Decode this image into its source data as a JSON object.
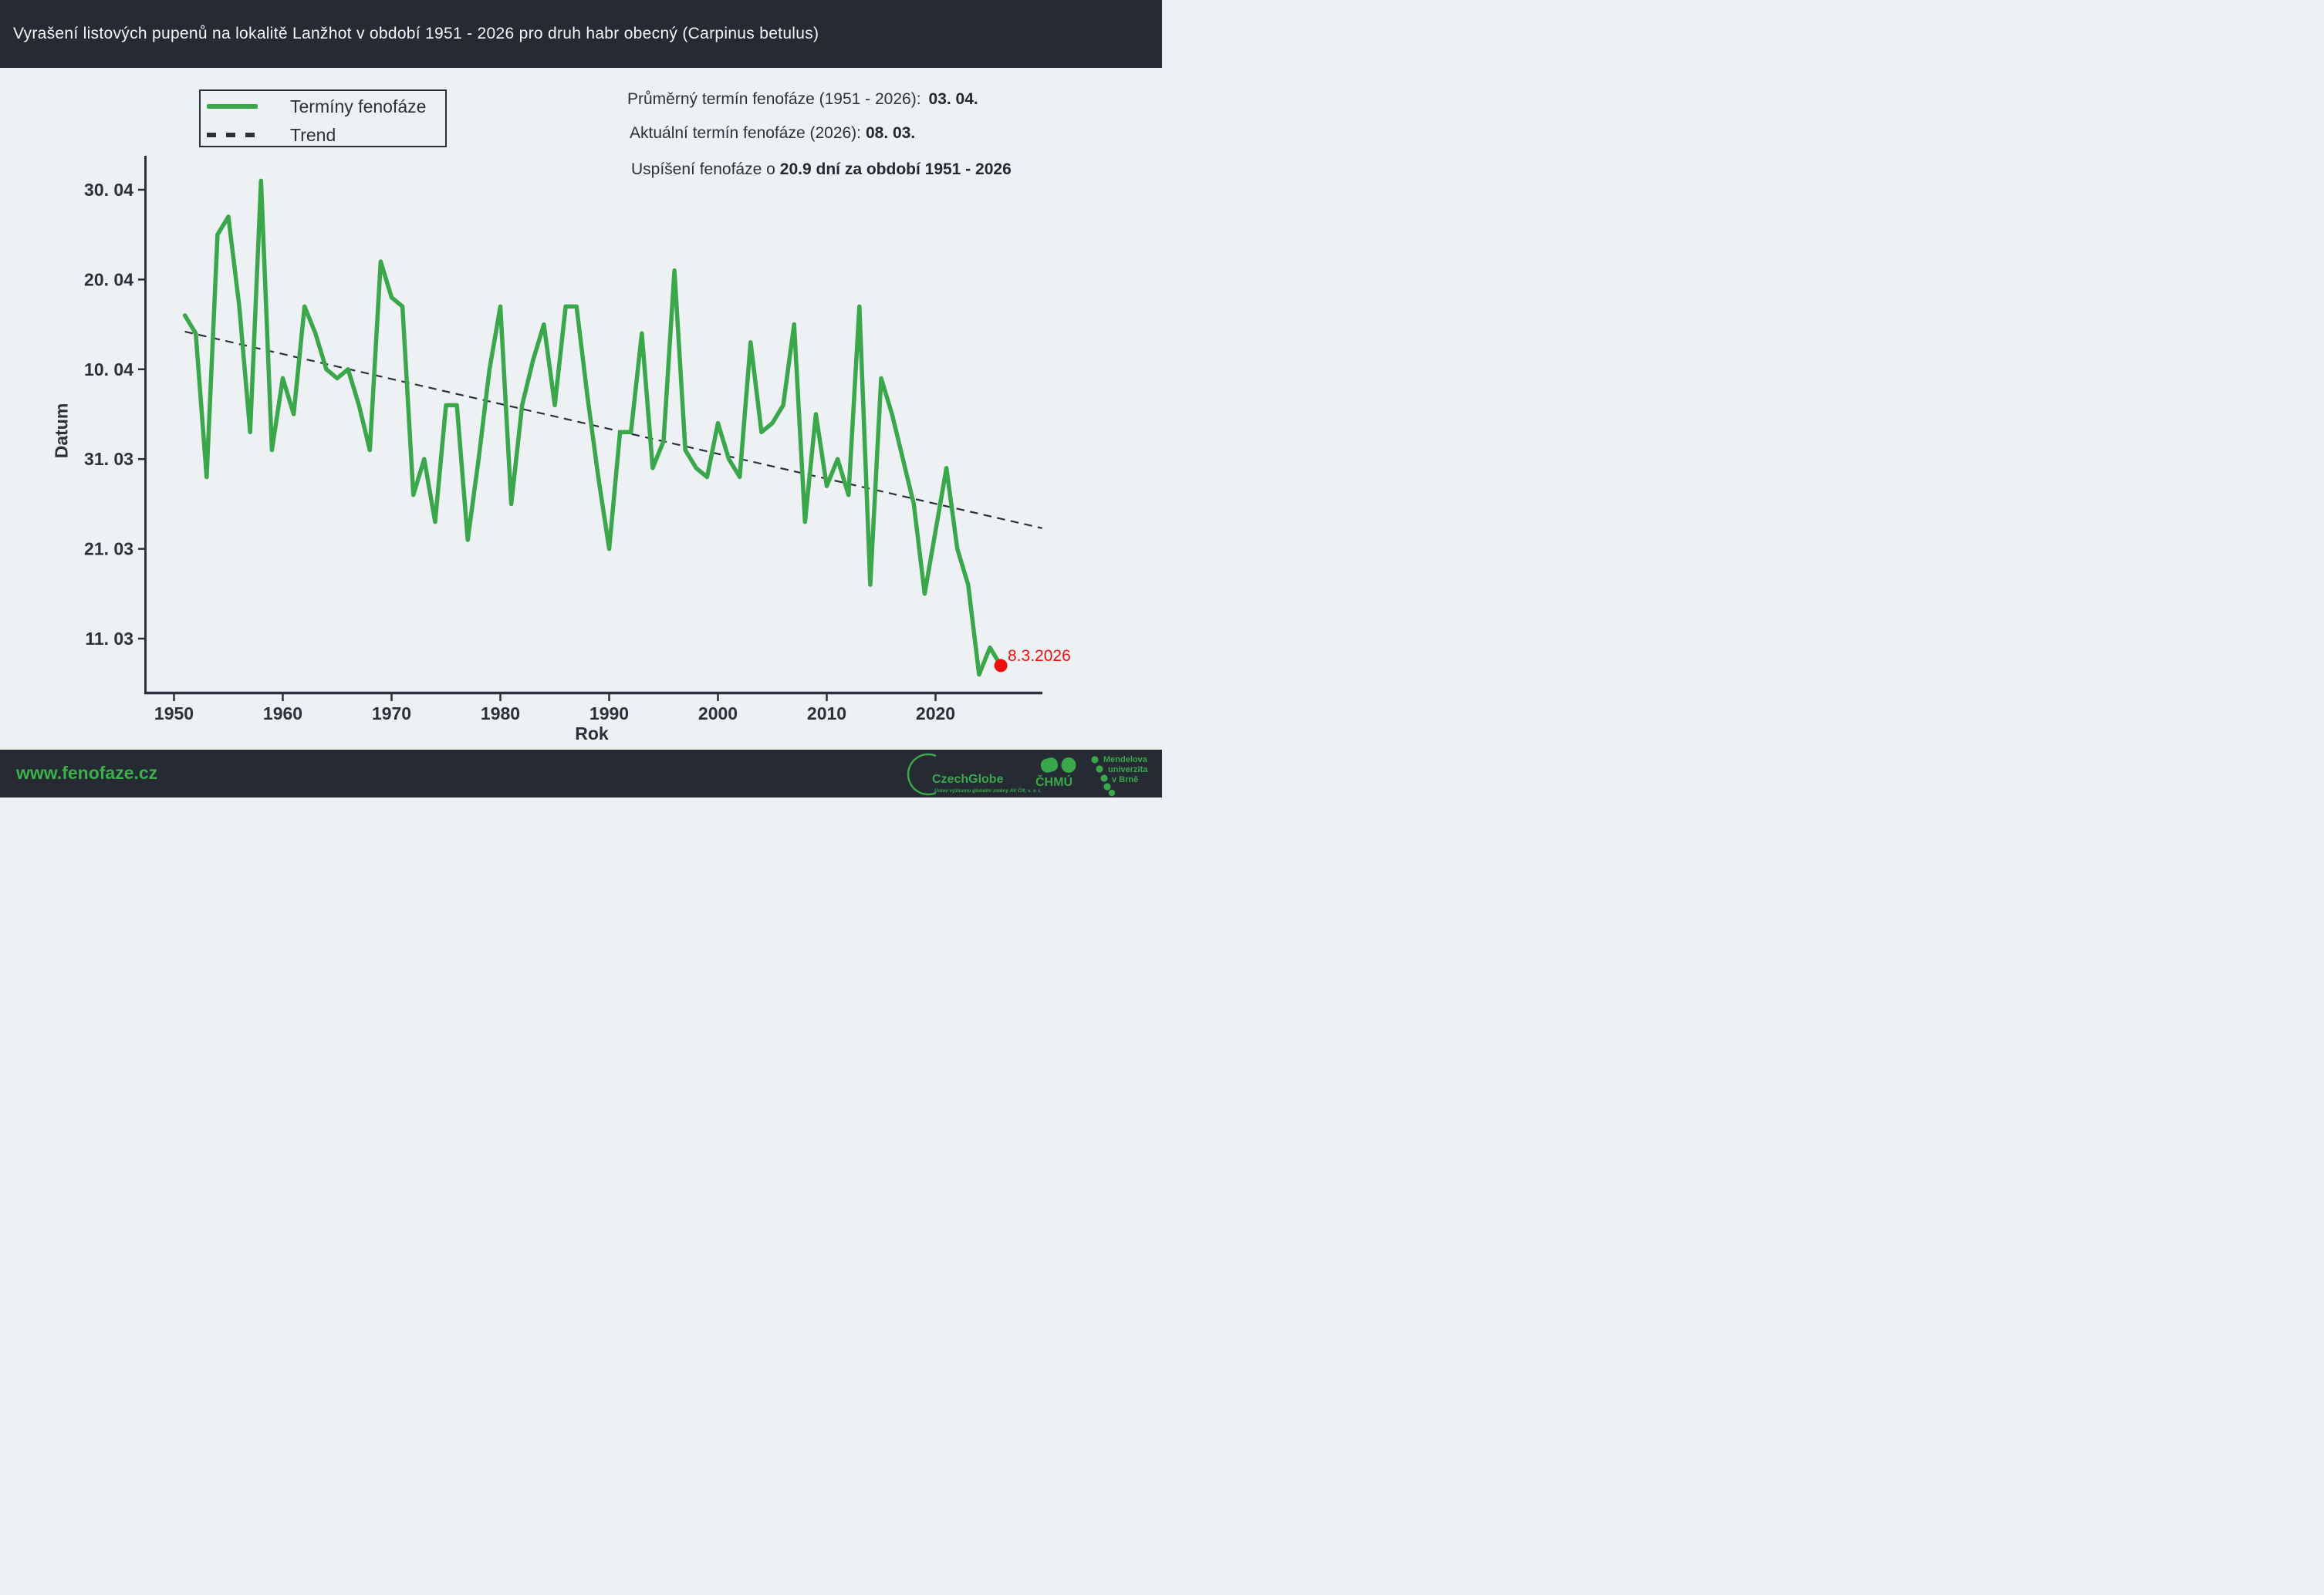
{
  "header": {
    "title": "Vyrašení listových pupenů na lokalitě Lanžhot v období 1951 - 2026 pro druh habr obecný (Carpinus betulus)"
  },
  "legend": {
    "series_label": "Termíny fenofáze",
    "trend_label": "Trend"
  },
  "stats": {
    "line1_label": "Průměrný termín fenofáze (1951 - 2026):",
    "line1_value": "03. 04.",
    "line2_label": "Aktuální termín fenofáze (2026):",
    "line2_value": "08. 03.",
    "line3_label": "Uspíšení fenofáze o",
    "line3_value": "20.9 dní za období 1951 - 2026"
  },
  "axes": {
    "y_label": "Datum",
    "x_label": "Rok"
  },
  "annotation": {
    "last_point_label": "8.3.2026"
  },
  "footer": {
    "website": "www.fenofaze.cz",
    "czechglobe": {
      "name": "CzechGlobe",
      "subtitle": "Ústav výzkumu globální změny AV ČR, v. v. i.",
      "icon": "czechglobe-arc-icon"
    },
    "chmu": {
      "name": "ČHMÚ",
      "icon": "chmu-blobs-icon"
    },
    "mendelu": {
      "lines": [
        "Mendelova",
        "univerzita",
        "v Brně"
      ],
      "icon": "mendelu-dots-arc-icon"
    }
  },
  "colors": {
    "page_bg": "#edf1f4",
    "bar_bg": "#252a33",
    "series_green": "#3aa74b",
    "footer_green": "#3db04c",
    "dark": "#2b313b",
    "highlight_red": "#f20d0d",
    "title_text": "#f4f6f8"
  },
  "chart_data": {
    "type": "line",
    "title": "Vyrašení listových pupenů na lokalitě Lanžhot v období 1951 - 2026 pro druh habr obecný (Carpinus betulus)",
    "xlabel": "Rok",
    "ylabel": "Datum",
    "grid": false,
    "legend_position": "top-left",
    "xlim": [
      1948,
      2032
    ],
    "ylim_day_of_year": [
      64,
      123
    ],
    "x_ticks": [
      1950,
      1960,
      1970,
      1980,
      1990,
      2000,
      2010,
      2020
    ],
    "y_ticks": [
      {
        "label": "30. 04",
        "day": 120
      },
      {
        "label": "20. 04",
        "day": 110
      },
      {
        "label": "10. 04",
        "day": 100
      },
      {
        "label": "31. 03",
        "day": 90
      },
      {
        "label": "21. 03",
        "day": 80
      },
      {
        "label": "11. 03",
        "day": 70
      }
    ],
    "years": [
      1951,
      1952,
      1953,
      1954,
      1955,
      1956,
      1957,
      1958,
      1959,
      1960,
      1961,
      1962,
      1963,
      1964,
      1965,
      1966,
      1967,
      1968,
      1969,
      1970,
      1971,
      1972,
      1973,
      1974,
      1975,
      1976,
      1977,
      1978,
      1979,
      1980,
      1981,
      1982,
      1983,
      1984,
      1985,
      1986,
      1987,
      1988,
      1989,
      1990,
      1991,
      1992,
      1993,
      1994,
      1995,
      1996,
      1997,
      1998,
      1999,
      2000,
      2001,
      2002,
      2003,
      2004,
      2005,
      2006,
      2007,
      2008,
      2009,
      2010,
      2011,
      2012,
      2013,
      2014,
      2015,
      2016,
      2017,
      2018,
      2019,
      2020,
      2021,
      2022,
      2023,
      2024,
      2025,
      2026
    ],
    "series": [
      {
        "name": "Termíny fenofáze",
        "day_of_year": [
          106,
          104,
          88,
          115,
          117,
          107,
          93,
          121,
          91,
          99,
          95,
          107,
          104,
          100,
          99,
          100,
          96,
          91,
          112,
          108,
          107,
          86,
          90,
          83,
          96,
          96,
          81,
          90,
          100,
          107,
          85,
          96,
          101,
          105,
          96,
          107,
          107,
          97,
          88,
          80,
          93,
          93,
          104,
          89,
          92,
          111,
          91,
          89,
          88,
          94,
          90,
          88,
          103,
          93,
          94,
          96,
          105,
          83,
          95,
          87,
          90,
          86,
          107,
          76,
          99,
          95,
          90,
          85,
          75,
          82,
          89,
          80,
          76,
          66,
          69,
          67
        ],
        "dates": [
          "16.4.",
          "14.4.",
          "29.3.",
          "25.4.",
          "27.4.",
          "17.4.",
          "3.4.",
          "1.5.",
          "1.4.",
          "9.4.",
          "5.4.",
          "17.4.",
          "14.4.",
          "10.4.",
          "9.4.",
          "10.4.",
          "6.4.",
          "1.4.",
          "22.4.",
          "18.4.",
          "17.4.",
          "27.3.",
          "31.3.",
          "24.3.",
          "6.4.",
          "6.4.",
          "22.3.",
          "31.3.",
          "10.4.",
          "17.4.",
          "26.3.",
          "6.4.",
          "11.4.",
          "15.4.",
          "6.4.",
          "17.4.",
          "17.4.",
          "7.4.",
          "29.3.",
          "21.3.",
          "3.4.",
          "3.4.",
          "14.4.",
          "30.3.",
          "2.4.",
          "21.4.",
          "1.4.",
          "30.3.",
          "29.3.",
          "4.4.",
          "31.3.",
          "29.3.",
          "13.4.",
          "3.4.",
          "4.4.",
          "6.4.",
          "15.4.",
          "24.3.",
          "5.4.",
          "28.3.",
          "31.3.",
          "27.3.",
          "17.4.",
          "17.3.",
          "9.4.",
          "5.4.",
          "31.3.",
          "26.3.",
          "16.3.",
          "23.3.",
          "30.3.",
          "21.3.",
          "17.3.",
          "7.3.",
          "10.3.",
          "8.3."
        ]
      }
    ],
    "trend": {
      "name": "Trend",
      "x_start_year": 1951,
      "day_start": 104.2,
      "x_end_year": 2029.8,
      "day_end": 82.3,
      "advance_days_1951_2026": 20.9
    },
    "highlight_point": {
      "year": 2026,
      "day": 67,
      "date": "8.3.2026",
      "color": "#f20d0d"
    }
  }
}
